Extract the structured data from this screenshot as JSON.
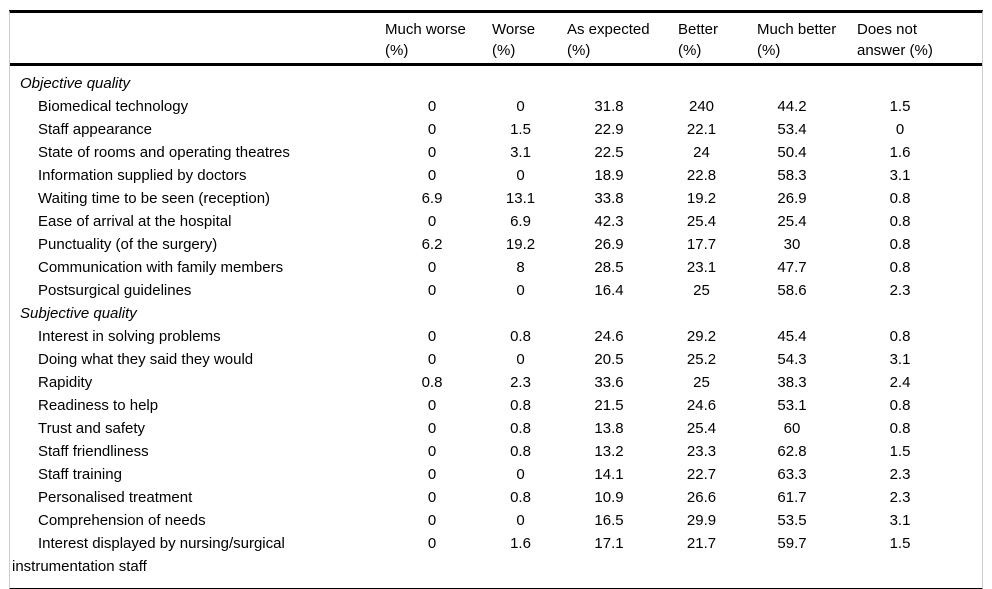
{
  "colors": {
    "background": "#ffffff",
    "text": "#000000",
    "rule": "#000000",
    "frame": "#cccccc"
  },
  "table": {
    "headers": [
      "Much worse (%)",
      "Worse (%)",
      "As expected (%)",
      "Better (%)",
      "Much better (%)",
      "Does not answer (%)"
    ],
    "sections": [
      {
        "title": "Objective quality",
        "rows": [
          {
            "label": "Biomedical technology",
            "values": [
              "0",
              "0",
              "31.8",
              "240",
              "44.2",
              "1.5"
            ]
          },
          {
            "label": "Staff appearance",
            "values": [
              "0",
              "1.5",
              "22.9",
              "22.1",
              "53.4",
              "0"
            ]
          },
          {
            "label": "State of rooms and operating theatres",
            "values": [
              "0",
              "3.1",
              "22.5",
              "24",
              "50.4",
              "1.6"
            ]
          },
          {
            "label": "Information supplied by doctors",
            "values": [
              "0",
              "0",
              "18.9",
              "22.8",
              "58.3",
              "3.1"
            ]
          },
          {
            "label": "Waiting time to be seen (reception)",
            "values": [
              "6.9",
              "13.1",
              "33.8",
              "19.2",
              "26.9",
              "0.8"
            ]
          },
          {
            "label": "Ease of arrival at the hospital",
            "values": [
              "0",
              "6.9",
              "42.3",
              "25.4",
              "25.4",
              "0.8"
            ]
          },
          {
            "label": "Punctuality (of the surgery)",
            "values": [
              "6.2",
              "19.2",
              "26.9",
              "17.7",
              "30",
              "0.8"
            ]
          },
          {
            "label": "Communication with family members",
            "values": [
              "0",
              "8",
              "28.5",
              "23.1",
              "47.7",
              "0.8"
            ]
          },
          {
            "label": "Postsurgical guidelines",
            "values": [
              "0",
              "0",
              "16.4",
              "25",
              "58.6",
              "2.3"
            ]
          }
        ]
      },
      {
        "title": "Subjective quality",
        "rows": [
          {
            "label": "Interest in solving problems",
            "values": [
              "0",
              "0.8",
              "24.6",
              "29.2",
              "45.4",
              "0.8"
            ]
          },
          {
            "label": "Doing what they said they would",
            "values": [
              "0",
              "0",
              "20.5",
              "25.2",
              "54.3",
              "3.1"
            ]
          },
          {
            "label": "Rapidity",
            "values": [
              "0.8",
              "2.3",
              "33.6",
              "25",
              "38.3",
              "2.4"
            ]
          },
          {
            "label": "Readiness to help",
            "values": [
              "0",
              "0.8",
              "21.5",
              "24.6",
              "53.1",
              "0.8"
            ]
          },
          {
            "label": "Trust and safety",
            "values": [
              "0",
              "0.8",
              "13.8",
              "25.4",
              "60",
              "0.8"
            ]
          },
          {
            "label": "Staff friendliness",
            "values": [
              "0",
              "0.8",
              "13.2",
              "23.3",
              "62.8",
              "1.5"
            ]
          },
          {
            "label": "Staff training",
            "values": [
              "0",
              "0",
              "14.1",
              "22.7",
              "63.3",
              "2.3"
            ]
          },
          {
            "label": "Personalised treatment",
            "values": [
              "0",
              "0.8",
              "10.9",
              "26.6",
              "61.7",
              "2.3"
            ]
          },
          {
            "label": "Comprehension of needs",
            "values": [
              "0",
              "0",
              "16.5",
              "29.9",
              "53.5",
              "3.1"
            ]
          },
          {
            "label": "Interest displayed by nursing/surgical instrumentation staff",
            "values": [
              "0",
              "1.6",
              "17.1",
              "21.7",
              "59.7",
              "1.5"
            ]
          }
        ]
      }
    ]
  }
}
